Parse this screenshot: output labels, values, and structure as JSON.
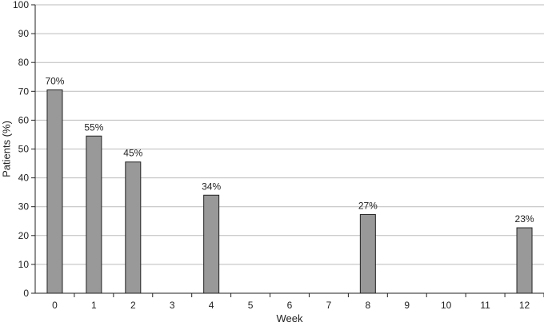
{
  "chart_data": {
    "type": "bar",
    "categories": [
      "0",
      "1",
      "2",
      "3",
      "4",
      "5",
      "6",
      "7",
      "8",
      "9",
      "10",
      "11",
      "12"
    ],
    "values": [
      70.5,
      54.5,
      45.5,
      null,
      34,
      null,
      null,
      null,
      27.3,
      null,
      null,
      null,
      22.7
    ],
    "data_labels": [
      "70%",
      "55%",
      "45%",
      "",
      "34%",
      "",
      "",
      "",
      "27%",
      "",
      "",
      "",
      "23%"
    ],
    "xlabel": "Week",
    "ylabel": "Patients (%)",
    "ylim": [
      0,
      100
    ],
    "yticks": [
      0,
      10,
      20,
      30,
      40,
      50,
      60,
      70,
      80,
      90,
      100
    ],
    "grid": true,
    "legend": "none",
    "bar_color": "#999999",
    "bar_edge_color": "#222222",
    "grid_color": "#bbbbbb"
  }
}
